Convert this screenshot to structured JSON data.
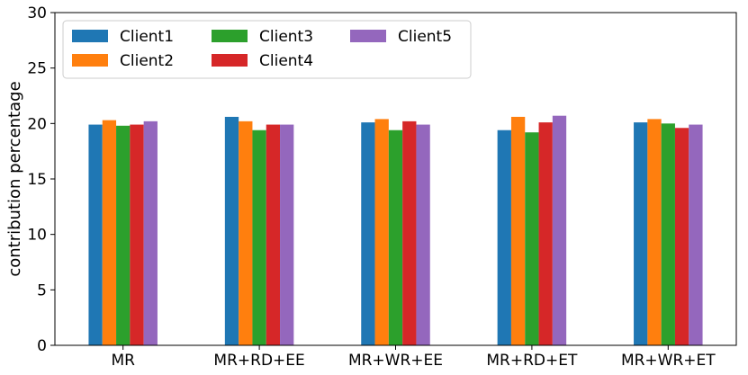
{
  "chart_data": {
    "type": "bar",
    "title": "",
    "xlabel": "",
    "ylabel": "contribution percentage",
    "ylim": [
      0,
      30
    ],
    "yticks": [
      0,
      5,
      10,
      15,
      20,
      25,
      30
    ],
    "grid": false,
    "legend_position": "top-left",
    "legend_columns": 3,
    "categories": [
      "MR",
      "MR+RD+EE",
      "MR+WR+EE",
      "MR+RD+ET",
      "MR+WR+ET"
    ],
    "series": [
      {
        "name": "Client1",
        "color": "#1f77b4",
        "values": [
          19.9,
          20.6,
          20.1,
          19.4,
          20.1
        ]
      },
      {
        "name": "Client2",
        "color": "#ff7f0e",
        "values": [
          20.3,
          20.2,
          20.4,
          20.6,
          20.4
        ]
      },
      {
        "name": "Client3",
        "color": "#2ca02c",
        "values": [
          19.8,
          19.4,
          19.4,
          19.2,
          20.0
        ]
      },
      {
        "name": "Client4",
        "color": "#d62728",
        "values": [
          19.9,
          19.9,
          20.2,
          20.1,
          19.6
        ]
      },
      {
        "name": "Client5",
        "color": "#9467bd",
        "values": [
          20.2,
          19.9,
          19.9,
          20.7,
          19.9
        ]
      }
    ]
  }
}
